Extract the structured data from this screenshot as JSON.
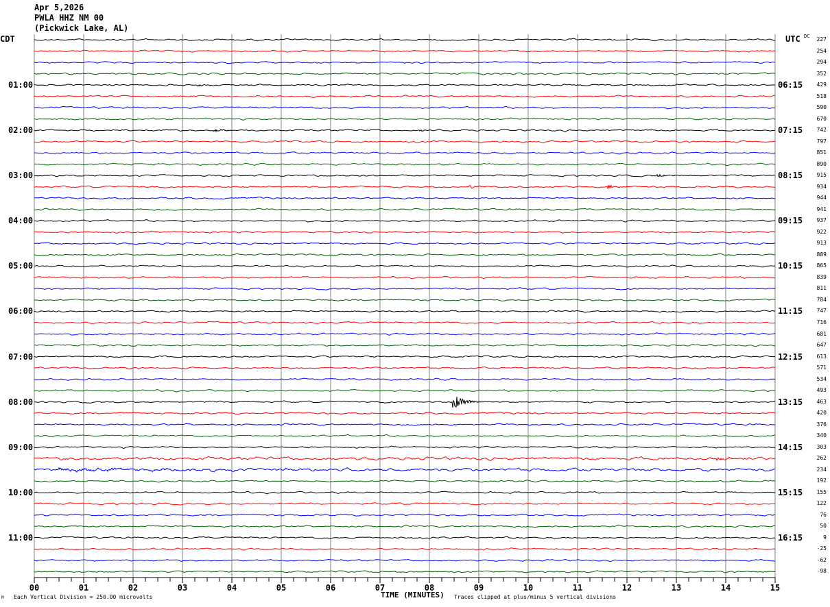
{
  "header": {
    "date": "Apr 5,2026",
    "station": "PWLA HHZ NM 00",
    "location": "(Pickwick Lake, AL)"
  },
  "left_timezone": "CDT",
  "right_timezone": "UTC",
  "dc_label": "DC",
  "footer": {
    "scale_note": "Each Vertical Division =  250.00 microvolts",
    "clip_note": "Traces clipped at plus/minus 5 vertical divisions",
    "corner_mark": "M"
  },
  "chart_data": {
    "type": "line",
    "xlabel": "TIME (MINUTES)",
    "xlim": [
      0,
      15
    ],
    "x_tick_labels": [
      "00",
      "01",
      "02",
      "03",
      "04",
      "05",
      "06",
      "07",
      "08",
      "09",
      "10",
      "11",
      "12",
      "13",
      "14",
      "15"
    ],
    "grid": true,
    "trace_colors": [
      "#000000",
      "#ff0000",
      "#0000ff",
      "#006400"
    ],
    "rows_per_hour": 4,
    "left_hour_labels": [
      "",
      "01:00",
      "02:00",
      "03:00",
      "04:00",
      "05:00",
      "06:00",
      "07:00",
      "08:00",
      "09:00",
      "10:00",
      "11:00"
    ],
    "right_hour_labels": [
      "",
      "06:15",
      "07:15",
      "08:15",
      "09:15",
      "10:15",
      "11:15",
      "12:15",
      "13:15",
      "14:15",
      "15:15",
      "16:15"
    ],
    "dc_offsets": [
      227,
      254,
      294,
      352,
      429,
      518,
      590,
      670,
      742,
      797,
      851,
      890,
      915,
      934,
      944,
      941,
      937,
      922,
      913,
      889,
      865,
      839,
      811,
      784,
      747,
      716,
      681,
      647,
      613,
      571,
      534,
      493,
      463,
      420,
      376,
      340,
      303,
      262,
      234,
      192,
      155,
      122,
      76,
      50,
      9,
      -25,
      -62,
      -98
    ],
    "events": [
      {
        "row": 4,
        "minute": 3.3,
        "amplitude": 1.5,
        "duration": 0.4
      },
      {
        "row": 8,
        "minute": 3.6,
        "amplitude": 2.5,
        "duration": 0.6
      },
      {
        "row": 8,
        "minute": 7.8,
        "amplitude": 1.5,
        "duration": 0.3
      },
      {
        "row": 13,
        "minute": 8.8,
        "amplitude": 2.5,
        "duration": 0.5
      },
      {
        "row": 13,
        "minute": 11.6,
        "amplitude": 3,
        "duration": 0.5
      },
      {
        "row": 12,
        "minute": 12.6,
        "amplitude": 1.8,
        "duration": 0.6
      },
      {
        "row": 32,
        "minute": 8.45,
        "amplitude": 14,
        "duration": 0.6
      },
      {
        "row": 37,
        "minute": 13.8,
        "amplitude": 1.8,
        "duration": 0.8
      },
      {
        "row": 38,
        "minute": 0.5,
        "amplitude": 1.6,
        "duration": 7
      }
    ]
  }
}
